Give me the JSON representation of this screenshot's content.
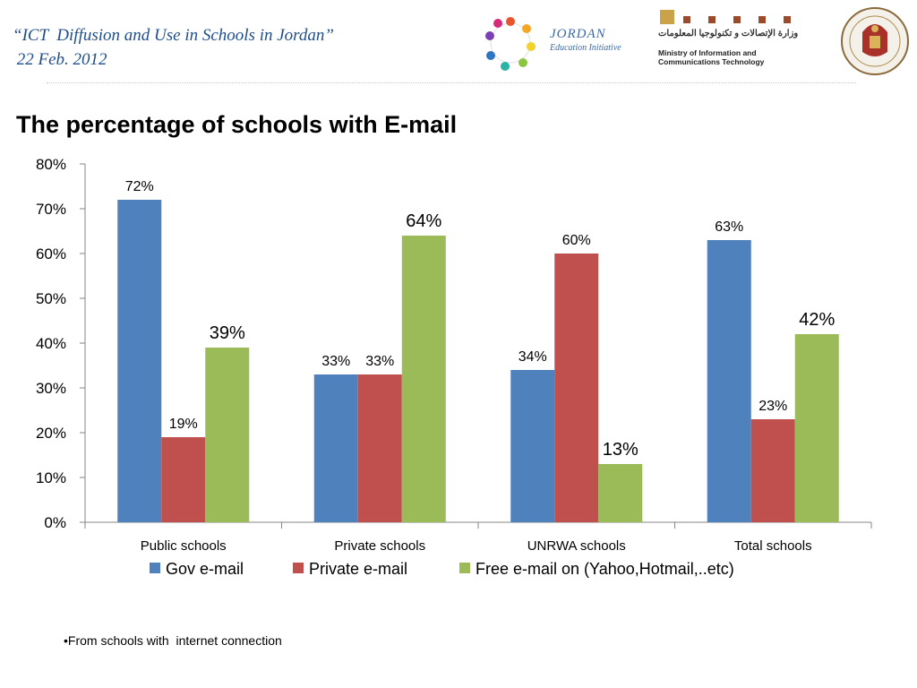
{
  "header": {
    "line1": "“ICT  Diffusion and Use in Schools in Jordan”",
    "line2": " 22 Feb. 2012"
  },
  "logos": {
    "jei_line1": "JORDAN",
    "jei_line2": "Education Initiative",
    "moict_arabic": "وزارة الإتصالات و تكنولوجيا المعلومات",
    "moict_line1": "Ministry of Information and",
    "moict_line2": "Communications Technology"
  },
  "slide_title": "The percentage of schools with E-mail",
  "footnote": "•From schools with  internet connection",
  "chart_data": {
    "type": "bar",
    "categories": [
      "Public schools",
      "Private schools",
      "UNRWA schools",
      "Total schools"
    ],
    "series": [
      {
        "name": "Gov e-mail",
        "color": "#4f81bd",
        "values": [
          72,
          33,
          34,
          63
        ],
        "labels": [
          "72%",
          "33%",
          "34%",
          "63%"
        ]
      },
      {
        "name": "Private e-mail",
        "color": "#c0504d",
        "values": [
          19,
          33,
          60,
          23
        ],
        "labels": [
          "19%",
          "33%",
          "60%",
          "23%"
        ]
      },
      {
        "name": "Free e-mail on (Yahoo,Hotmail,..etc)",
        "color": "#9bbb59",
        "values": [
          39,
          64,
          13,
          42
        ],
        "labels": [
          "39%",
          "64%",
          "13%",
          "42%"
        ]
      }
    ],
    "yticks": [
      "0%",
      "10%",
      "20%",
      "30%",
      "40%",
      "50%",
      "60%",
      "70%",
      "80%"
    ],
    "ylim": [
      0,
      80
    ],
    "grid": false,
    "legend": "bottom"
  }
}
